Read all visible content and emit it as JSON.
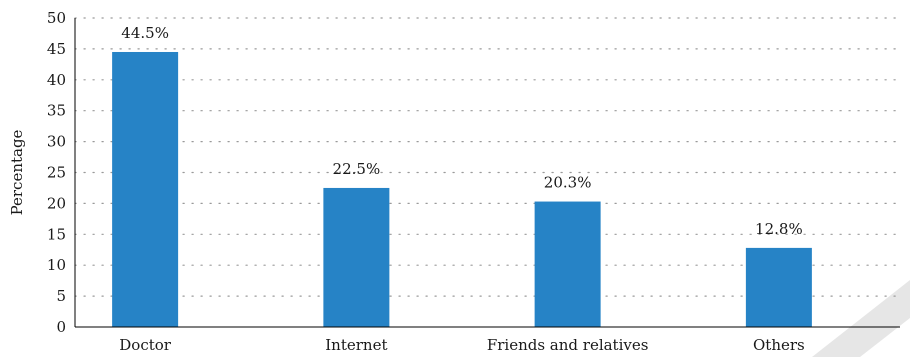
{
  "chart_data": {
    "type": "bar",
    "categories": [
      "Doctor",
      "Internet",
      "Friends and relatives",
      "Others"
    ],
    "values": [
      44.5,
      22.5,
      20.3,
      12.8
    ],
    "data_labels": [
      "44.5%",
      "22.5%",
      "20.3%",
      "12.8%"
    ],
    "title": "",
    "xlabel": "",
    "ylabel": "Percentage",
    "ylim": [
      0,
      50
    ],
    "yticks": [
      "0",
      "5",
      "10",
      "15",
      "20",
      "25",
      "30",
      "35",
      "40",
      "45",
      "50"
    ],
    "grid": true,
    "grid_style": "dotted",
    "legend": "none",
    "bar_color": "#2683c6",
    "watermark_color": "#e6e6e6"
  }
}
